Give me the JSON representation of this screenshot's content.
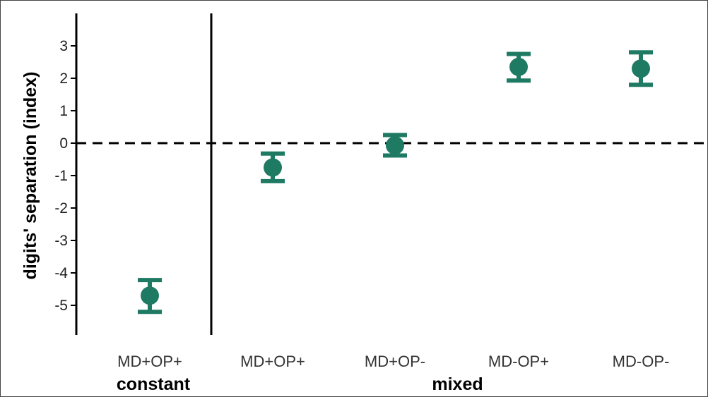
{
  "chart_data": {
    "type": "scatter",
    "title": "",
    "xlabel": "",
    "ylabel": "digits' separation (index)",
    "ylim": [
      -5.9,
      3.9
    ],
    "yticks": [
      3,
      2,
      1,
      0,
      -1,
      -2,
      -3,
      -4,
      -5
    ],
    "reference_line": 0,
    "point_color": "#1f7a63",
    "groups": [
      {
        "label": "constant",
        "categories": [
          "MD+OP+"
        ]
      },
      {
        "label": "mixed",
        "categories": [
          "MD+OP+",
          "MD+OP-",
          "MD-OP+",
          "MD-OP-"
        ]
      }
    ],
    "points": [
      {
        "group": "constant",
        "category": "MD+OP+",
        "y": -4.7,
        "lower": -5.2,
        "upper": -4.22
      },
      {
        "group": "mixed",
        "category": "MD+OP+",
        "y": -0.75,
        "lower": -1.17,
        "upper": -0.32
      },
      {
        "group": "mixed",
        "category": "MD+OP-",
        "y": -0.07,
        "lower": -0.38,
        "upper": 0.25
      },
      {
        "group": "mixed",
        "category": "MD-OP+",
        "y": 2.35,
        "lower": 1.93,
        "upper": 2.75
      },
      {
        "group": "mixed",
        "category": "MD-OP-",
        "y": 2.3,
        "lower": 1.8,
        "upper": 2.8
      }
    ]
  }
}
